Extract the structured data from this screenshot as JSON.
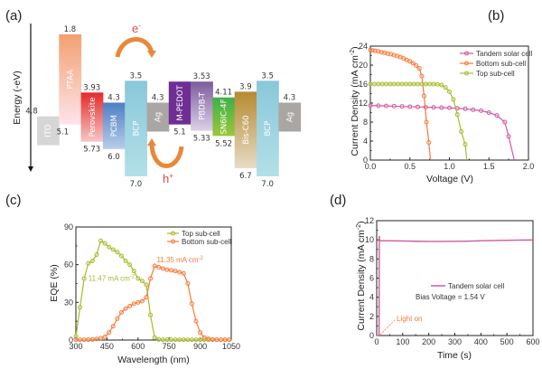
{
  "panels": {
    "a": "(a)",
    "b": "(b)",
    "c": "(c)",
    "d": "(d)"
  },
  "chart_data": [
    {
      "panel": "(a)",
      "type": "bar",
      "title": "",
      "ylabel": "Energy (-eV)",
      "layers": [
        {
          "name": "ITO",
          "top": 4.8,
          "bottom": null,
          "top_label": "4.8",
          "bottom_label": "",
          "color": "#d6d6d6",
          "color2": "#d6d6d6"
        },
        {
          "name": "PTAA",
          "top": 1.8,
          "bottom": 5.1,
          "top_label": "1.8",
          "bottom_label": "5.1",
          "color": "#f4a070",
          "color2": "#fde4ea"
        },
        {
          "name": "Perovskite",
          "top": 3.93,
          "bottom": 5.73,
          "top_label": "3.93",
          "bottom_label": "5.73",
          "color": "#e52a2a",
          "color2": "#f7c6c6"
        },
        {
          "name": "PCBM",
          "top": 4.3,
          "bottom": 6.0,
          "top_label": "4.3",
          "bottom_label": "6.0",
          "color": "#4d7fc4",
          "color2": "#b8cdea"
        },
        {
          "name": "BCP",
          "top": 3.5,
          "bottom": 7.0,
          "top_label": "3.5",
          "bottom_label": "7.0",
          "color": "#88c8d9",
          "color2": "#b3e0e8"
        },
        {
          "name": "Ag",
          "top": 4.3,
          "bottom": null,
          "top_label": "4.3",
          "bottom_label": "",
          "color": "#aaa6a4",
          "color2": "#aaa6a4"
        },
        {
          "name": "M-PEDOT",
          "top": 3.53,
          "bottom": 5.1,
          "top_label": "",
          "bottom_label": "5.1",
          "color": "#6f2e94",
          "color2": "#6f2e94"
        },
        {
          "name": "PBDB-T",
          "top": 3.53,
          "bottom": 5.33,
          "top_label": "3.53",
          "bottom_label": "5.33",
          "color": "#7c5c9a",
          "color2": "#ddd0e8"
        },
        {
          "name": "SN6IC-4F",
          "top": 4.11,
          "bottom": 5.52,
          "top_label": "4.11",
          "bottom_label": "5.52",
          "color": "#3db04a",
          "color2": "#9cc73a"
        },
        {
          "name": "Bis-C60",
          "top": 3.9,
          "bottom": 6.7,
          "top_label": "3.9",
          "bottom_label": "6.7",
          "color": "#b78a30",
          "color2": "#e6dcc6"
        },
        {
          "name": "BCP",
          "top": 3.5,
          "bottom": 7.0,
          "top_label": "3.5",
          "bottom_label": "7.0",
          "color": "#88c8d9",
          "color2": "#b3e0e8"
        },
        {
          "name": "Ag",
          "top": 4.3,
          "bottom": null,
          "top_label": "4.3",
          "bottom_label": "",
          "color": "#aaa6a4",
          "color2": "#aaa6a4"
        }
      ],
      "annotations": {
        "electron": "e",
        "electron_sup": "-",
        "hole": "h",
        "hole_sup": "+"
      }
    },
    {
      "panel": "(b)",
      "type": "line",
      "title": "",
      "xlabel": "Voltage (V)",
      "ylabel": "Current Density (mA cm",
      "ylabel_sup": "-2",
      "ylabel_end": ")",
      "xlim": [
        0,
        2.0
      ],
      "ylim": [
        0,
        24
      ],
      "xticks": [
        "0.0",
        "0.5",
        "1.0",
        "1.5",
        "2.0"
      ],
      "yticks": [
        "0",
        "4",
        "8",
        "12",
        "16",
        "20",
        "24"
      ],
      "legend_position": "top-right",
      "series": [
        {
          "name": "Tandem solar cell",
          "color": "#d2589f",
          "x": [
            0.0,
            0.1,
            0.2,
            0.3,
            0.4,
            0.5,
            0.6,
            0.7,
            0.8,
            0.9,
            1.0,
            1.1,
            1.2,
            1.3,
            1.4,
            1.5,
            1.6,
            1.7,
            1.75,
            1.82
          ],
          "y": [
            11.5,
            11.45,
            11.4,
            11.35,
            11.3,
            11.25,
            11.2,
            11.15,
            11.1,
            11.05,
            11.0,
            10.9,
            10.8,
            10.6,
            10.4,
            10.0,
            9.4,
            8.0,
            5.0,
            0.0
          ]
        },
        {
          "name": "Bottom sub-cell",
          "color": "#f57a3a",
          "x": [
            0.0,
            0.03,
            0.06,
            0.1,
            0.14,
            0.18,
            0.22,
            0.26,
            0.3,
            0.34,
            0.38,
            0.42,
            0.46,
            0.5,
            0.54,
            0.58,
            0.62,
            0.65,
            0.68,
            0.71,
            0.74,
            0.76
          ],
          "y": [
            23.2,
            23.1,
            23.0,
            22.9,
            22.7,
            22.6,
            22.4,
            22.3,
            22.1,
            21.9,
            21.7,
            21.4,
            21.1,
            20.8,
            20.4,
            19.9,
            19.3,
            17.7,
            13.5,
            8.0,
            3.7,
            0.0
          ]
        },
        {
          "name": "Top sub-cell",
          "color": "#a8ba2a",
          "x": [
            0.0,
            0.05,
            0.1,
            0.15,
            0.2,
            0.25,
            0.3,
            0.35,
            0.4,
            0.45,
            0.5,
            0.55,
            0.6,
            0.65,
            0.7,
            0.75,
            0.8,
            0.85,
            0.9,
            0.95,
            1.0,
            1.05,
            1.1,
            1.15,
            1.2,
            1.22
          ],
          "y": [
            16.0,
            16.0,
            16.0,
            16.0,
            16.0,
            16.0,
            16.0,
            16.0,
            16.0,
            16.0,
            16.0,
            16.0,
            16.0,
            16.0,
            16.0,
            16.0,
            16.0,
            15.95,
            15.8,
            15.3,
            14.4,
            12.8,
            9.6,
            6.0,
            3.3,
            0.0
          ]
        }
      ]
    },
    {
      "panel": "(c)",
      "type": "line",
      "title": "",
      "xlabel": "Wavelength (nm)",
      "ylabel": "EQE (%)",
      "xlim": [
        300,
        1050
      ],
      "ylim": [
        0,
        90
      ],
      "xticks": [
        "300",
        "450",
        "600",
        "750",
        "900",
        "1050"
      ],
      "yticks": [
        "0",
        "30",
        "60",
        "90"
      ],
      "legend_position": "top-right",
      "annotations": [
        {
          "text": "11.47 mA cm",
          "sup": "-2",
          "color": "#a8ba2a",
          "x": 360,
          "y": 47
        },
        {
          "text": "11.35 mA cm",
          "sup": "-2",
          "color": "#f57a3a",
          "x": 690,
          "y": 62
        }
      ],
      "series": [
        {
          "name": "Top sub-cell",
          "color": "#a8ba2a",
          "x": [
            300,
            320,
            340,
            360,
            380,
            400,
            420,
            440,
            460,
            480,
            500,
            520,
            540,
            560,
            580,
            600,
            620,
            640,
            660,
            680,
            700,
            720,
            740,
            760,
            780,
            800,
            820,
            840,
            860,
            880,
            900,
            920,
            940,
            960,
            980,
            1000,
            1020,
            1040
          ],
          "y": [
            3,
            26,
            49,
            61,
            63,
            68,
            79,
            77,
            74,
            72,
            70,
            67,
            63,
            60,
            55,
            49,
            47,
            44,
            20,
            2,
            0.5,
            0.3,
            0.3,
            0.3,
            0.3,
            0.3,
            0.3,
            0.3,
            0.3,
            0.3,
            0.3,
            0.3,
            0.3,
            0.3,
            0.3,
            0.3,
            0.3,
            0.3
          ]
        },
        {
          "name": "Bottom sub-cell",
          "color": "#f57a3a",
          "x": [
            300,
            320,
            340,
            360,
            380,
            400,
            420,
            440,
            460,
            480,
            500,
            520,
            540,
            560,
            580,
            600,
            620,
            640,
            660,
            680,
            700,
            720,
            740,
            760,
            780,
            800,
            820,
            840,
            860,
            880,
            900,
            920,
            940,
            960,
            980,
            1000,
            1020,
            1040
          ],
          "y": [
            0.3,
            0.3,
            0.3,
            0.4,
            0.5,
            0.8,
            1.5,
            2.5,
            6,
            11,
            17,
            22,
            25,
            27,
            29,
            30,
            31,
            34,
            49,
            59,
            58,
            57,
            56,
            55.5,
            55,
            54,
            53,
            45,
            29,
            15,
            6,
            2,
            1,
            0.5,
            0.3,
            0.3,
            0.3,
            0.3
          ]
        }
      ]
    },
    {
      "panel": "(d)",
      "type": "line",
      "title": "",
      "xlabel": "Time (s)",
      "ylabel": "Current Density (mA cm",
      "ylabel_sup": "-2",
      "ylabel_end": ")",
      "xlim": [
        0,
        600
      ],
      "ylim": [
        0,
        12
      ],
      "xticks": [
        "0",
        "100",
        "200",
        "300",
        "400",
        "500",
        "600"
      ],
      "yticks": [
        "0",
        "2",
        "4",
        "6",
        "8",
        "10",
        "12"
      ],
      "legend_position": "center",
      "legend_text": "Tandem solar cell",
      "bias_text": "Bias Voltage = 1.54 V",
      "annotation": {
        "text": "Light on",
        "color": "#f57a3a",
        "x": 10,
        "y": 0
      },
      "series": [
        {
          "name": "Tandem solar cell",
          "color": "#d2589f",
          "x": [
            0,
            9,
            10,
            11,
            12,
            50,
            100,
            150,
            200,
            250,
            300,
            350,
            400,
            450,
            500,
            550,
            600
          ],
          "y": [
            0,
            0,
            10.4,
            10.0,
            9.9,
            9.9,
            9.88,
            9.85,
            9.83,
            9.83,
            9.84,
            9.86,
            9.9,
            9.93,
            9.95,
            9.97,
            9.98
          ]
        }
      ]
    }
  ]
}
